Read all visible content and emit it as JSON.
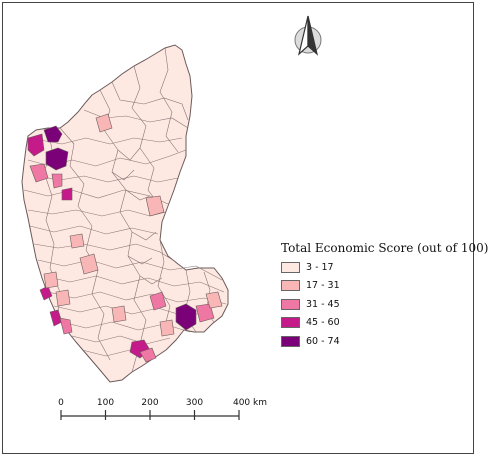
{
  "map": {
    "legend": {
      "title": "Total Economic Score (out of 100)",
      "classes": [
        {
          "label": "3 - 17",
          "color": "#fde9e2"
        },
        {
          "label": "17 - 31",
          "color": "#f8b7b6"
        },
        {
          "label": "31 - 45",
          "color": "#ef77a3"
        },
        {
          "label": "45 - 60",
          "color": "#c51b8a"
        },
        {
          "label": "60 - 74",
          "color": "#7a0177"
        }
      ]
    },
    "scale_bar": {
      "ticks": [
        "0",
        "100",
        "200",
        "300",
        "400 km"
      ]
    },
    "north_arrow": {
      "icon": "north-arrow-icon"
    },
    "colors": {
      "boundary": "#6b5a5a",
      "frame": "#444444"
    }
  }
}
